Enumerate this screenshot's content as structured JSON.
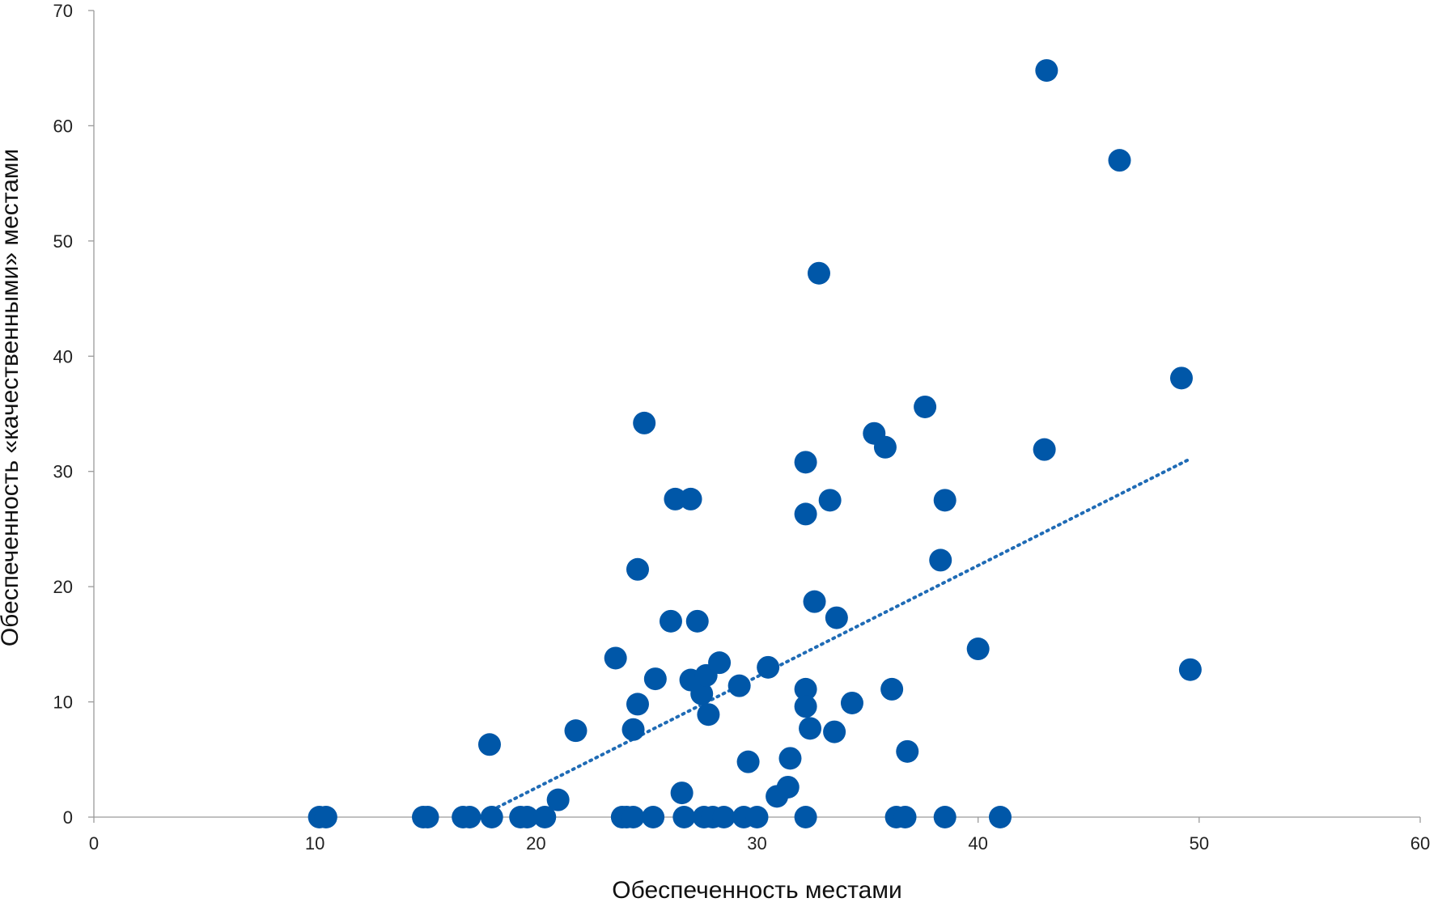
{
  "chart_data": {
    "type": "scatter",
    "title": "",
    "xlabel": "Обеспеченность местами",
    "ylabel": "Обеспеченность «качественными» местами",
    "xlim": [
      0,
      60
    ],
    "ylim": [
      0,
      70
    ],
    "xticks": [
      0,
      10,
      20,
      30,
      40,
      50,
      60
    ],
    "yticks": [
      0,
      10,
      20,
      30,
      40,
      50,
      60,
      70
    ],
    "grid": false,
    "legend": "none",
    "marker_color": "#0057A8",
    "trendline": {
      "type": "linear",
      "style": "dotted",
      "color": "#1F6BB5",
      "from": [
        18,
        0.6
      ],
      "to": [
        49.5,
        31
      ]
    },
    "points": [
      [
        10.2,
        0
      ],
      [
        10.5,
        0
      ],
      [
        14.9,
        0
      ],
      [
        15.1,
        0
      ],
      [
        16.7,
        0
      ],
      [
        17.0,
        0
      ],
      [
        18.0,
        0
      ],
      [
        19.3,
        0
      ],
      [
        19.6,
        0
      ],
      [
        20.4,
        0
      ],
      [
        23.9,
        0
      ],
      [
        24.1,
        0
      ],
      [
        24.4,
        0
      ],
      [
        25.3,
        0
      ],
      [
        26.7,
        0
      ],
      [
        27.6,
        0
      ],
      [
        28.0,
        0
      ],
      [
        28.5,
        0
      ],
      [
        29.4,
        0
      ],
      [
        30.0,
        0
      ],
      [
        32.2,
        0
      ],
      [
        36.3,
        0
      ],
      [
        36.7,
        0
      ],
      [
        38.5,
        0
      ],
      [
        41.0,
        0
      ],
      [
        17.9,
        6.3
      ],
      [
        21.0,
        1.5
      ],
      [
        21.8,
        7.5
      ],
      [
        23.6,
        13.8
      ],
      [
        24.4,
        7.6
      ],
      [
        24.6,
        9.8
      ],
      [
        24.6,
        21.5
      ],
      [
        24.9,
        34.2
      ],
      [
        25.4,
        12.0
      ],
      [
        26.1,
        17.0
      ],
      [
        26.3,
        27.6
      ],
      [
        26.6,
        2.1
      ],
      [
        27.0,
        27.6
      ],
      [
        27.0,
        11.9
      ],
      [
        27.3,
        17.0
      ],
      [
        27.5,
        10.7
      ],
      [
        27.7,
        12.3
      ],
      [
        27.8,
        8.9
      ],
      [
        28.3,
        13.4
      ],
      [
        29.2,
        11.4
      ],
      [
        29.6,
        4.8
      ],
      [
        30.5,
        13.0
      ],
      [
        30.9,
        1.8
      ],
      [
        31.4,
        2.6
      ],
      [
        31.5,
        5.1
      ],
      [
        32.2,
        11.1
      ],
      [
        32.2,
        9.6
      ],
      [
        32.2,
        26.3
      ],
      [
        32.2,
        30.8
      ],
      [
        32.4,
        7.7
      ],
      [
        32.6,
        18.7
      ],
      [
        32.8,
        47.2
      ],
      [
        33.3,
        27.5
      ],
      [
        33.5,
        7.4
      ],
      [
        33.6,
        17.3
      ],
      [
        34.3,
        9.9
      ],
      [
        35.3,
        33.3
      ],
      [
        35.8,
        32.1
      ],
      [
        36.1,
        11.1
      ],
      [
        36.8,
        5.7
      ],
      [
        37.6,
        35.6
      ],
      [
        38.3,
        22.3
      ],
      [
        38.5,
        27.5
      ],
      [
        40.0,
        14.6
      ],
      [
        43.0,
        31.9
      ],
      [
        43.1,
        64.8
      ],
      [
        46.4,
        57.0
      ],
      [
        49.2,
        38.1
      ],
      [
        49.6,
        12.8
      ]
    ]
  }
}
